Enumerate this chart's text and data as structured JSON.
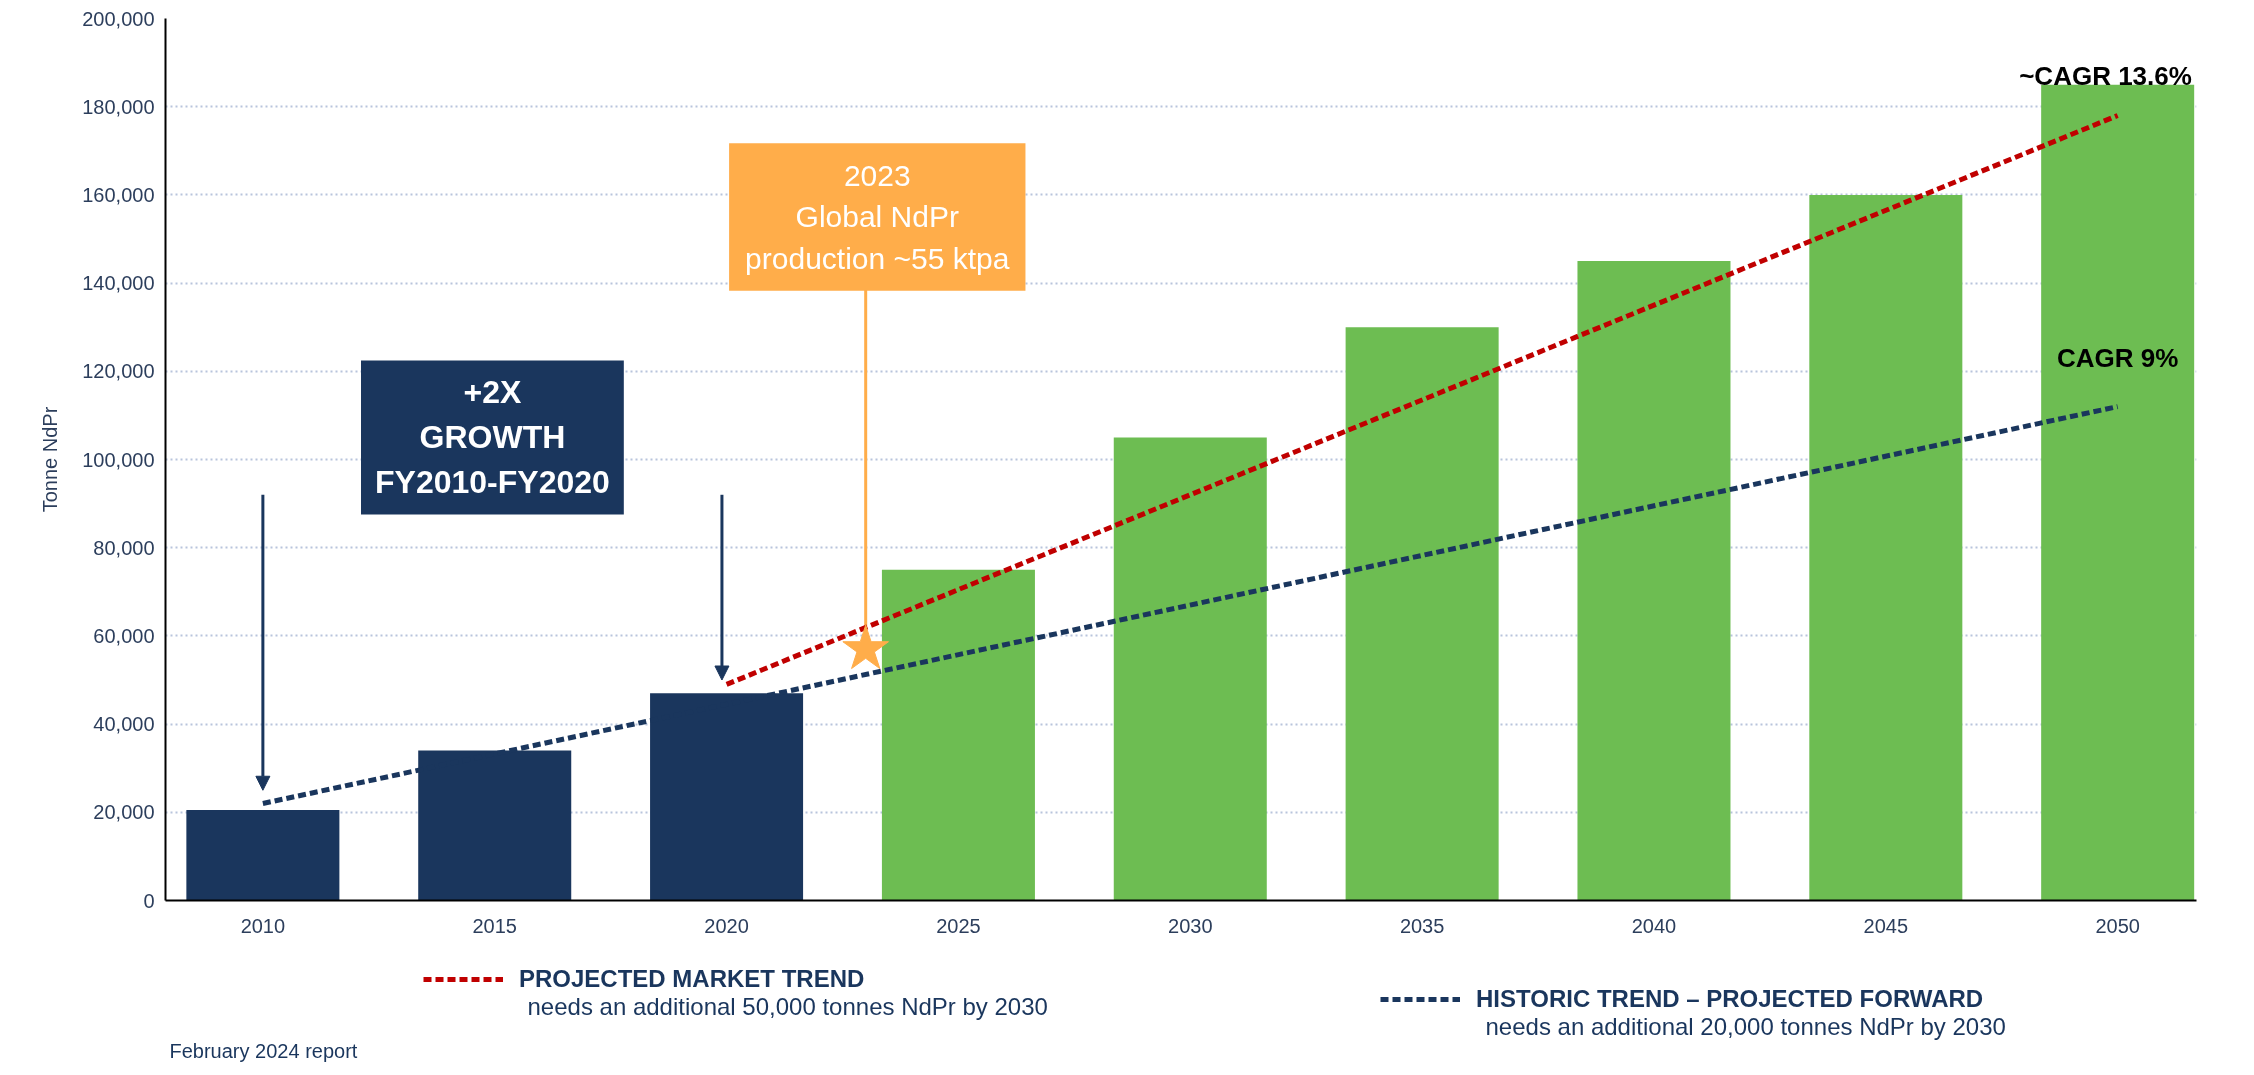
{
  "chart_data": {
    "type": "bar",
    "ylabel": "Tonne NdPr",
    "x": [
      2010,
      2015,
      2020,
      2025,
      2030,
      2035,
      2040,
      2045,
      2050
    ],
    "series": [
      {
        "values": [
          20500,
          34000,
          47000,
          75000,
          105000,
          130000,
          145000,
          160000,
          185000
        ],
        "colors": [
          "#1a365d",
          "#1a365d",
          "#1a365d",
          "#6dbd52",
          "#6dbd52",
          "#6dbd52",
          "#6dbd52",
          "#6dbd52",
          "#6dbd52"
        ]
      },
      {
        "type": "line",
        "name": "PROJECTED MARKET TREND",
        "color": "#c00000",
        "line_style": "dashed",
        "x": [
          2020,
          2050
        ],
        "values": [
          49000,
          178000
        ]
      },
      {
        "type": "line",
        "name": "HISTORIC TREND – PROJECTED FORWARD",
        "color": "#1a365d",
        "line_style": "dashed",
        "x": [
          2010,
          2050
        ],
        "values": [
          22000,
          112000
        ]
      },
      {
        "type": "scatter",
        "marker": "star",
        "color": "#ffad4a",
        "x": [
          2023
        ],
        "values": [
          57000
        ]
      }
    ],
    "xlim": [
      2007.9,
      2051.7
    ],
    "xticks": [
      2010,
      2015,
      2020,
      2025,
      2030,
      2035,
      2040,
      2045,
      2050
    ],
    "ylim": [
      0,
      200000
    ],
    "yticks": [
      {
        "value": 0,
        "label": "0"
      },
      {
        "value": 20000,
        "label": "20,000"
      },
      {
        "value": 40000,
        "label": "40,000"
      },
      {
        "value": 60000,
        "label": "60,000"
      },
      {
        "value": 80000,
        "label": "80,000"
      },
      {
        "value": 100000,
        "label": "100,000"
      },
      {
        "value": 120000,
        "label": "120,000"
      },
      {
        "value": 140000,
        "label": "140,000"
      },
      {
        "value": 160000,
        "label": "160,000"
      },
      {
        "value": 180000,
        "label": "180,000"
      },
      {
        "value": 200000,
        "label": "200,000"
      }
    ],
    "grid": "y",
    "legend": "bottom",
    "annotations": [
      {
        "text": "2023\nGlobal NdPr\nproduction ~55 ktpa",
        "x": 2023,
        "y": 57000
      },
      "+2X\nGROWTH\nFY2010-FY2020",
      "~CAGR 13.6%",
      "CAGR 9%",
      "needs an additional 50,000 tonnes NdPr by 2030",
      "needs an additional 20,000 tonnes NdPr by 2030",
      "February 2024 report"
    ]
  }
}
